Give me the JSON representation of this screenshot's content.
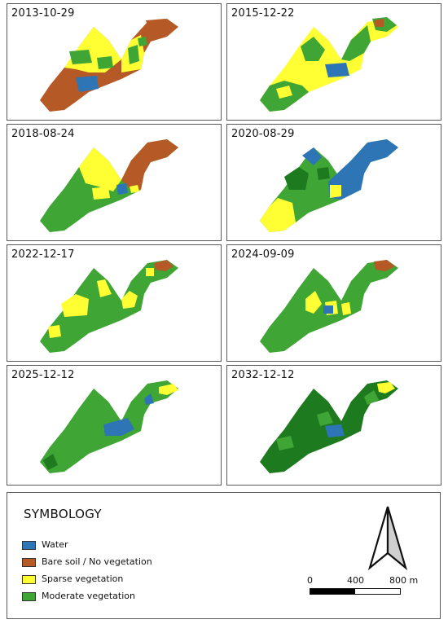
{
  "colors": {
    "water": "#2e75b6",
    "bare": "#b55a27",
    "sparse": "#ffff33",
    "moderate": "#3fa535",
    "dense": "#1e7a1e"
  },
  "panels": [
    {
      "date": "2013-10-29"
    },
    {
      "date": "2015-12-22"
    },
    {
      "date": "2018-08-24"
    },
    {
      "date": "2020-08-29"
    },
    {
      "date": "2022-12-17"
    },
    {
      "date": "2024-09-09"
    },
    {
      "date": "2025-12-12"
    },
    {
      "date": "2032-12-12"
    }
  ],
  "legend": {
    "title": "SYMBOLOGY",
    "items": [
      {
        "label": "Water",
        "color": "#2e75b6"
      },
      {
        "label": "Bare soil / No vegetation",
        "color": "#b55a27"
      },
      {
        "label": "Sparse vegetation",
        "color": "#ffff33"
      },
      {
        "label": "Moderate vegetation",
        "color": "#3fa535"
      }
    ]
  },
  "scale_bar": {
    "labels": [
      "0",
      "400",
      "800 m"
    ]
  },
  "north_arrow_icon": "north-arrow-icon"
}
